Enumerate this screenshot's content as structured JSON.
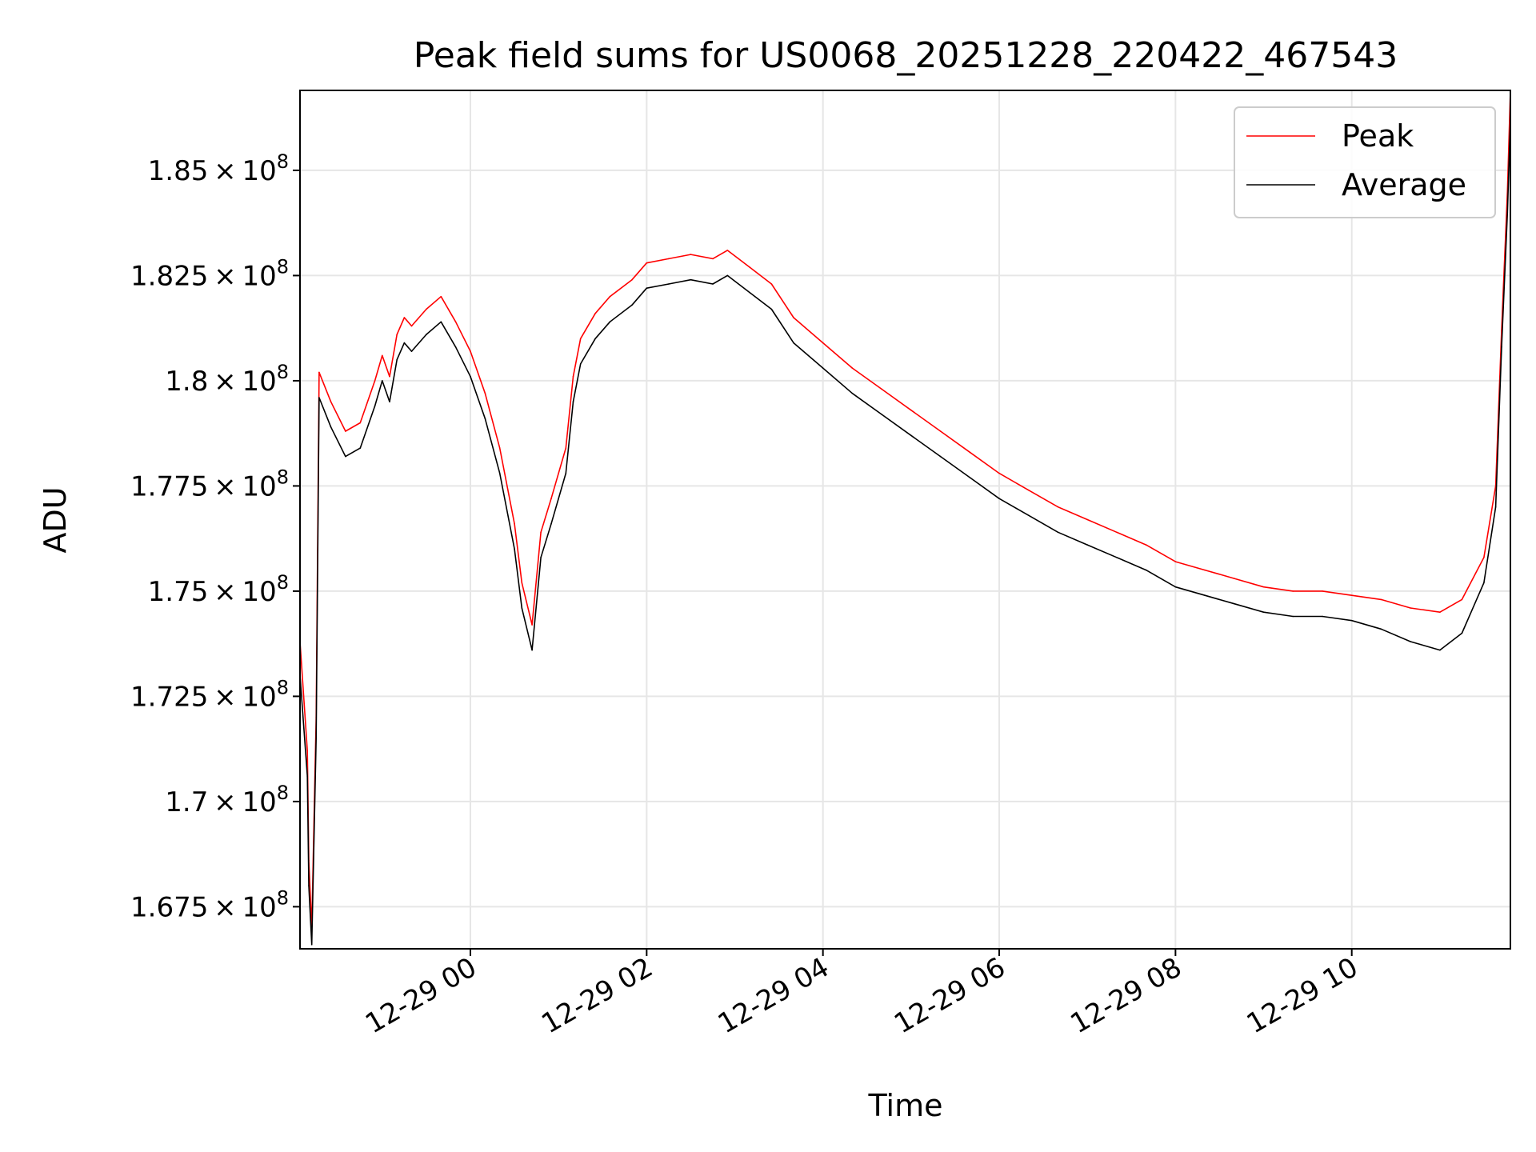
{
  "chart_data": {
    "type": "line",
    "title": "Peak field sums for US0068_20251228_220422_467543",
    "xlabel": "Time",
    "ylabel": "ADU",
    "x_range": [
      "12-28 22:04",
      "12-29 11:48"
    ],
    "ylim": [
      166500000,
      186900000
    ],
    "grid": true,
    "legend_position": "top-right",
    "x_ticks": [
      {
        "time": "12-29 00:00",
        "label": "12-29 00"
      },
      {
        "time": "12-29 02:00",
        "label": "12-29 02"
      },
      {
        "time": "12-29 04:00",
        "label": "12-29 04"
      },
      {
        "time": "12-29 06:00",
        "label": "12-29 06"
      },
      {
        "time": "12-29 08:00",
        "label": "12-29 08"
      },
      {
        "time": "12-29 10:00",
        "label": "12-29 10"
      }
    ],
    "y_ticks": [
      {
        "value": 167500000,
        "mantissa": "1.675"
      },
      {
        "value": 170000000,
        "mantissa": "1.7"
      },
      {
        "value": 172500000,
        "mantissa": "1.725"
      },
      {
        "value": 175000000,
        "mantissa": "1.75"
      },
      {
        "value": 177500000,
        "mantissa": "1.775"
      },
      {
        "value": 180000000,
        "mantissa": "1.8"
      },
      {
        "value": 182500000,
        "mantissa": "1.825"
      },
      {
        "value": 185000000,
        "mantissa": "1.85"
      }
    ],
    "tick_exponent": "8",
    "time_unit": "hours",
    "series": [
      {
        "name": "Peak",
        "color": "#ff0000",
        "x": [
          "12-28 22:04",
          "12-28 22:09",
          "12-28 22:10",
          "12-28 22:12",
          "12-28 22:15",
          "12-28 22:17",
          "12-28 22:25",
          "12-28 22:35",
          "12-28 22:45",
          "12-28 22:55",
          "12-28 23:00",
          "12-28 23:05",
          "12-28 23:10",
          "12-28 23:15",
          "12-28 23:20",
          "12-28 23:30",
          "12-28 23:40",
          "12-28 23:50",
          "12-29 00:00",
          "12-29 00:10",
          "12-29 00:20",
          "12-29 00:30",
          "12-29 00:35",
          "12-29 00:42",
          "12-29 00:48",
          "12-29 00:55",
          "12-29 01:05",
          "12-29 01:10",
          "12-29 01:15",
          "12-29 01:25",
          "12-29 01:35",
          "12-29 01:50",
          "12-29 02:00",
          "12-29 02:15",
          "12-29 02:30",
          "12-29 02:45",
          "12-29 02:55",
          "12-29 03:10",
          "12-29 03:25",
          "12-29 03:40",
          "12-29 04:00",
          "12-29 04:20",
          "12-29 04:40",
          "12-29 05:00",
          "12-29 05:20",
          "12-29 05:40",
          "12-29 06:00",
          "12-29 06:20",
          "12-29 06:40",
          "12-29 07:00",
          "12-29 07:20",
          "12-29 07:40",
          "12-29 08:00",
          "12-29 08:20",
          "12-29 08:40",
          "12-29 09:00",
          "12-29 09:20",
          "12-29 09:40",
          "12-29 10:00",
          "12-29 10:20",
          "12-29 10:40",
          "12-29 11:00",
          "12-29 11:15",
          "12-29 11:30",
          "12-29 11:38",
          "12-29 11:42",
          "12-29 11:46",
          "12-29 11:48"
        ],
        "values": [
          173800000,
          171200000,
          168600000,
          167000000,
          172000000,
          180200000,
          179500000,
          178800000,
          179000000,
          180000000,
          180600000,
          180100000,
          181100000,
          181500000,
          181300000,
          181700000,
          182000000,
          181400000,
          180700000,
          179700000,
          178400000,
          176600000,
          175200000,
          174200000,
          176400000,
          177200000,
          178400000,
          180100000,
          181000000,
          181600000,
          182000000,
          182400000,
          182800000,
          182900000,
          183000000,
          182900000,
          183100000,
          182700000,
          182300000,
          181500000,
          180900000,
          180300000,
          179800000,
          179300000,
          178800000,
          178300000,
          177800000,
          177400000,
          177000000,
          176700000,
          176400000,
          176100000,
          175700000,
          175500000,
          175300000,
          175100000,
          175000000,
          175000000,
          174900000,
          174800000,
          174600000,
          174500000,
          174800000,
          175800000,
          177500000,
          181200000,
          184500000,
          186900000
        ]
      },
      {
        "name": "Average",
        "color": "#000000",
        "x": [
          "12-28 22:04",
          "12-28 22:09",
          "12-28 22:10",
          "12-28 22:12",
          "12-28 22:15",
          "12-28 22:17",
          "12-28 22:25",
          "12-28 22:35",
          "12-28 22:45",
          "12-28 22:55",
          "12-28 23:00",
          "12-28 23:05",
          "12-28 23:10",
          "12-28 23:15",
          "12-28 23:20",
          "12-28 23:30",
          "12-28 23:40",
          "12-28 23:50",
          "12-29 00:00",
          "12-29 00:10",
          "12-29 00:20",
          "12-29 00:30",
          "12-29 00:35",
          "12-29 00:42",
          "12-29 00:48",
          "12-29 00:55",
          "12-29 01:05",
          "12-29 01:10",
          "12-29 01:15",
          "12-29 01:25",
          "12-29 01:35",
          "12-29 01:50",
          "12-29 02:00",
          "12-29 02:15",
          "12-29 02:30",
          "12-29 02:45",
          "12-29 02:55",
          "12-29 03:10",
          "12-29 03:25",
          "12-29 03:40",
          "12-29 04:00",
          "12-29 04:20",
          "12-29 04:40",
          "12-29 05:00",
          "12-29 05:20",
          "12-29 05:40",
          "12-29 06:00",
          "12-29 06:20",
          "12-29 06:40",
          "12-29 07:00",
          "12-29 07:20",
          "12-29 07:40",
          "12-29 08:00",
          "12-29 08:20",
          "12-29 08:40",
          "12-29 09:00",
          "12-29 09:20",
          "12-29 09:40",
          "12-29 10:00",
          "12-29 10:20",
          "12-29 10:40",
          "12-29 11:00",
          "12-29 11:15",
          "12-29 11:30",
          "12-29 11:38",
          "12-29 11:42",
          "12-29 11:46",
          "12-29 11:48"
        ],
        "values": [
          173000000,
          170600000,
          168000000,
          166600000,
          171500000,
          179600000,
          178900000,
          178200000,
          178400000,
          179400000,
          180000000,
          179500000,
          180500000,
          180900000,
          180700000,
          181100000,
          181400000,
          180800000,
          180100000,
          179100000,
          177800000,
          176000000,
          174600000,
          173600000,
          175800000,
          176600000,
          177800000,
          179500000,
          180400000,
          181000000,
          181400000,
          181800000,
          182200000,
          182300000,
          182400000,
          182300000,
          182500000,
          182100000,
          181700000,
          180900000,
          180300000,
          179700000,
          179200000,
          178700000,
          178200000,
          177700000,
          177200000,
          176800000,
          176400000,
          176100000,
          175800000,
          175500000,
          175100000,
          174900000,
          174700000,
          174500000,
          174400000,
          174400000,
          174300000,
          174100000,
          173800000,
          173600000,
          174000000,
          175200000,
          177000000,
          180800000,
          184000000,
          186200000
        ]
      }
    ]
  }
}
